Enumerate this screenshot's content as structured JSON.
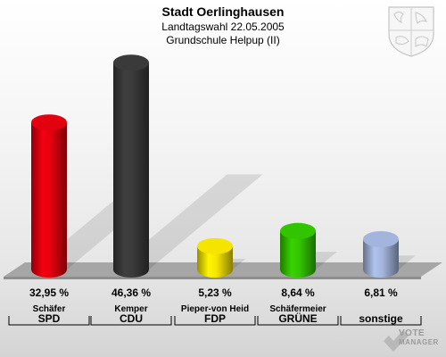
{
  "header": {
    "title": "Stadt Oerlinghausen",
    "subtitle": "Landtagswahl 22.05.2005",
    "subtitle2": "Grundschule Helpup (II)"
  },
  "watermark": {
    "line1": "VOTE",
    "line2": "MANAGER"
  },
  "chart_data": {
    "type": "bar",
    "title": "Stadt Oerlinghausen",
    "subtitle": "Landtagswahl 22.05.2005 — Grundschule Helpup (II)",
    "unit": "%",
    "categories": [
      "SPD",
      "CDU",
      "FDP",
      "GRÜNE",
      "sonstige"
    ],
    "candidates": [
      "Schäfer",
      "Kemper",
      "Pieper-von Heid",
      "Schäfermeier",
      ""
    ],
    "values": [
      32.95,
      46.36,
      5.23,
      8.64,
      6.81
    ],
    "value_labels": [
      "32,95 %",
      "46,36 %",
      "5,23 %",
      "8,64 %",
      "6,81 %"
    ],
    "colors": [
      "#e3000f",
      "#3a3a3a",
      "#f5e400",
      "#33c400",
      "#a3b5dc"
    ],
    "ylim": [
      0,
      50
    ],
    "grid": false,
    "legend": "none"
  }
}
